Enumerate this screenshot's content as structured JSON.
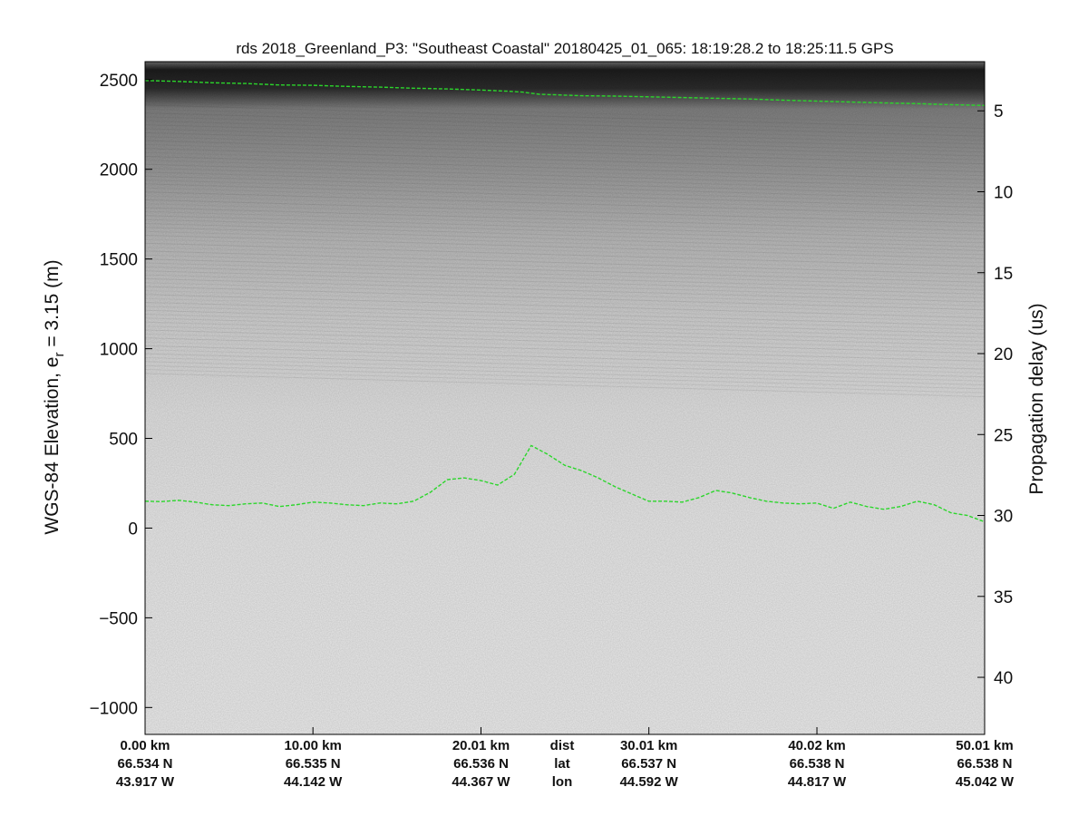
{
  "chart_data": {
    "type": "line",
    "title": "rds 2018_Greenland_P3: \"Southeast Coastal\"  20180425_01_065: 18:19:28.2 to 18:25:11.5 GPS",
    "ylabel_left": "WGS-84 Elevation, e",
    "ylabel_left_sub": "r",
    "ylabel_left_suffix": " = 3.15 (m)",
    "ylabel_right": "Propagation delay (us)",
    "ylim": [
      -1150,
      2600
    ],
    "xlim": [
      0,
      50.01
    ],
    "left_ticks": [
      2500,
      2000,
      1500,
      1000,
      500,
      0,
      -500,
      -1000
    ],
    "left_tick_labels": [
      "2500",
      "2000",
      "1500",
      "1000",
      "500",
      "0",
      "−500",
      "−1000"
    ],
    "right_ticks": [
      5,
      10,
      15,
      20,
      25,
      30,
      35,
      40
    ],
    "right_tick_labels": [
      "5",
      "10",
      "15",
      "20",
      "25",
      "30",
      "35",
      "40"
    ],
    "x_ticks": [
      0,
      10,
      20.01,
      30.01,
      40.02,
      50.01
    ],
    "x_labels": {
      "dist": [
        "0.00 km",
        "10.00 km",
        "20.01 km",
        "30.01 km",
        "40.02 km",
        "50.01 km"
      ],
      "lat": [
        "66.534 N",
        "66.535 N",
        "66.536 N",
        "66.537 N",
        "66.538 N",
        "66.538 N"
      ],
      "lon": [
        "43.917 W",
        "44.142 W",
        "44.367 W",
        "44.592 W",
        "44.817 W",
        "45.042 W"
      ]
    },
    "row_labels": [
      "dist",
      "lat",
      "lon"
    ],
    "series": [
      {
        "color": "#2bd62b",
        "x": [
          0,
          2,
          4,
          6,
          8,
          10,
          12,
          14,
          16,
          18,
          20,
          21.5,
          22.5,
          23.5,
          24.5,
          26,
          28,
          30,
          32,
          34,
          36,
          38,
          40,
          42,
          44,
          46,
          48,
          50
        ],
        "y": [
          2495,
          2490,
          2482,
          2478,
          2470,
          2468,
          2462,
          2458,
          2452,
          2448,
          2442,
          2436,
          2430,
          2418,
          2415,
          2410,
          2408,
          2404,
          2400,
          2396,
          2392,
          2385,
          2380,
          2375,
          2370,
          2366,
          2360,
          2356
        ]
      },
      {
        "color": "#2bd62b",
        "x": [
          0,
          1,
          2,
          3,
          4,
          5,
          6,
          7,
          8,
          9,
          10,
          11,
          12,
          13,
          14,
          15,
          16,
          17,
          18,
          19,
          20,
          21,
          22,
          23,
          24,
          25,
          26,
          27,
          28,
          29,
          30,
          31,
          32,
          33,
          34,
          35,
          36,
          37,
          38,
          39,
          40,
          41,
          42,
          43,
          44,
          45,
          46,
          47,
          48,
          49,
          50
        ],
        "y": [
          150,
          148,
          155,
          145,
          130,
          125,
          135,
          140,
          120,
          130,
          145,
          140,
          130,
          125,
          140,
          135,
          150,
          200,
          270,
          280,
          265,
          240,
          300,
          460,
          410,
          350,
          320,
          280,
          230,
          190,
          150,
          150,
          145,
          170,
          210,
          195,
          170,
          150,
          140,
          135,
          140,
          110,
          145,
          120,
          105,
          120,
          150,
          130,
          85,
          70,
          35
        ]
      }
    ],
    "grid": false,
    "background": "radar echogram, grayscale"
  }
}
